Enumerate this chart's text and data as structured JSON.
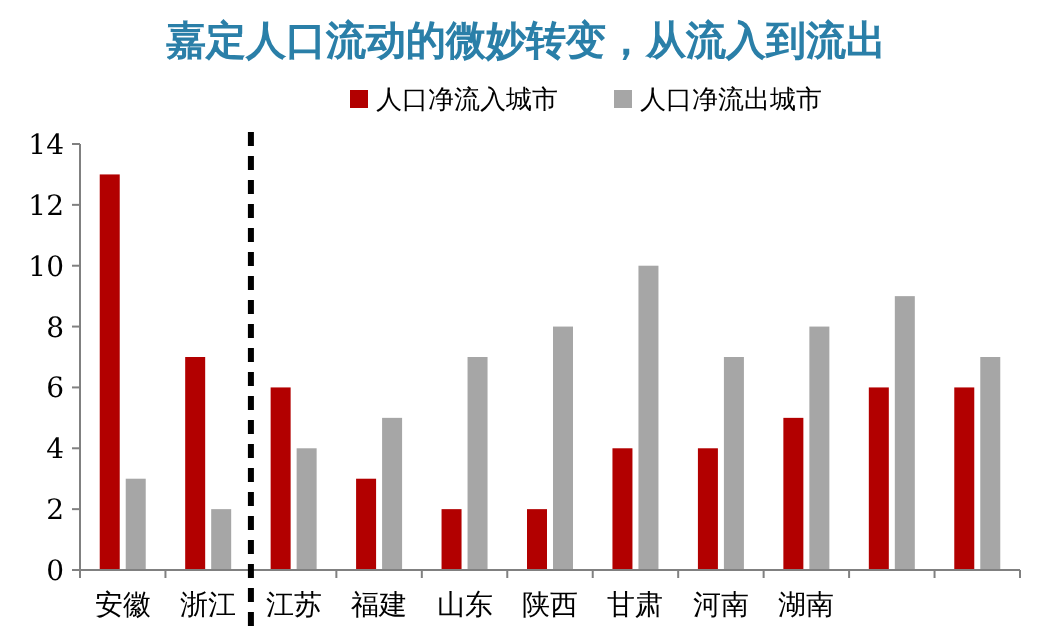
{
  "chart_data": {
    "type": "bar",
    "title": "嘉定人口流动的微妙转变，从流入到流出",
    "categories": [
      "安徽",
      "浙江",
      "江苏",
      "福建",
      "山东",
      "陕西",
      "甘肃",
      "河南",
      "湖南",
      null,
      null
    ],
    "series": [
      {
        "name": "人口净流入城市",
        "color": "#b20000",
        "values": [
          13,
          7,
          6,
          3,
          2,
          2,
          4,
          4,
          5,
          6,
          6
        ]
      },
      {
        "name": "人口净流出城市",
        "color": "#a6a6a6",
        "values": [
          3,
          2,
          4,
          5,
          7,
          8,
          10,
          7,
          8,
          9,
          7
        ]
      }
    ],
    "ylim": [
      0,
      14
    ],
    "yticks": [
      0,
      2,
      4,
      6,
      8,
      10,
      12,
      14
    ],
    "legend": "top",
    "grid": false
  }
}
